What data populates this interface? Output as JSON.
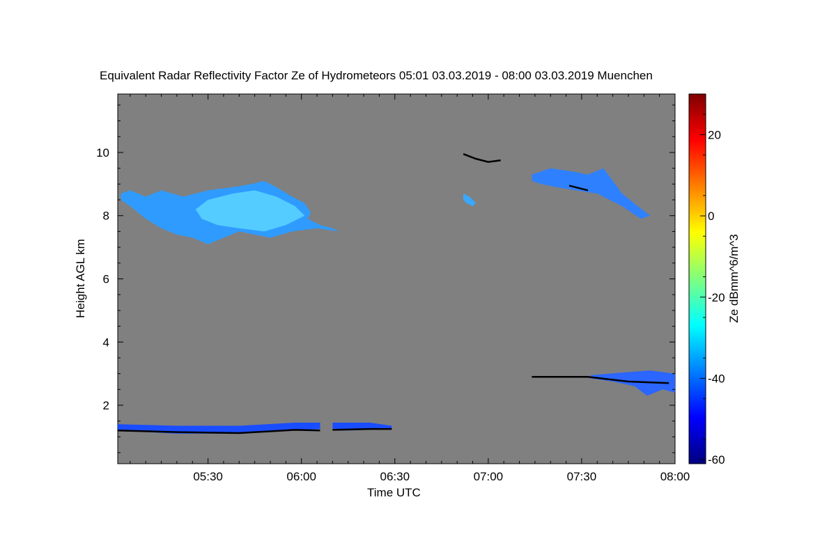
{
  "chart_data": {
    "type": "heatmap",
    "title": "Equivalent Radar Reflectivity Factor Ze of Hydrometeors   05:01 03.03.2019 - 08:00 03.03.2019 Muenchen",
    "xlabel": "Time UTC",
    "ylabel": "Height AGL km",
    "x_ticks": [
      "05:30",
      "06:00",
      "06:30",
      "07:00",
      "07:30",
      "08:00"
    ],
    "x_tick_minutes": [
      330,
      360,
      390,
      420,
      450,
      480
    ],
    "xlim_minutes": [
      301,
      480
    ],
    "y_ticks": [
      2,
      4,
      6,
      8,
      10
    ],
    "ylim": [
      0.15,
      11.85
    ],
    "background_color": "#808080",
    "colorbar": {
      "label": "Ze dBmm^6/m^3",
      "ticks": [
        20,
        0,
        -20,
        -40,
        -60
      ],
      "range": [
        -61,
        30
      ],
      "colors": [
        "#00007f",
        "#0000ff",
        "#007fff",
        "#00ffff",
        "#7fff7f",
        "#ffff00",
        "#ff7f00",
        "#ff0000",
        "#7f0000"
      ]
    },
    "features": [
      {
        "name": "upper-cloud-layer-left",
        "color": "#2f9bff",
        "outline": [
          [
            302,
            8.7
          ],
          [
            305,
            8.8
          ],
          [
            310,
            8.6
          ],
          [
            315,
            8.8
          ],
          [
            322,
            8.6
          ],
          [
            330,
            8.8
          ],
          [
            338,
            8.9
          ],
          [
            344,
            9.0
          ],
          [
            348,
            9.1
          ],
          [
            352,
            8.9
          ],
          [
            357,
            8.6
          ],
          [
            361,
            8.4
          ],
          [
            363,
            8.1
          ],
          [
            362,
            7.9
          ],
          [
            366,
            7.7
          ],
          [
            370,
            7.6
          ],
          [
            372,
            7.5
          ],
          [
            365,
            7.6
          ],
          [
            357,
            7.5
          ],
          [
            350,
            7.3
          ],
          [
            345,
            7.4
          ],
          [
            340,
            7.5
          ],
          [
            335,
            7.3
          ],
          [
            330,
            7.1
          ],
          [
            325,
            7.3
          ],
          [
            320,
            7.4
          ],
          [
            315,
            7.6
          ],
          [
            310,
            7.9
          ],
          [
            305,
            8.3
          ],
          [
            302,
            8.5
          ]
        ]
      },
      {
        "name": "upper-cloud-core-left",
        "color": "#54ccff",
        "outline": [
          [
            330,
            8.5
          ],
          [
            338,
            8.7
          ],
          [
            345,
            8.8
          ],
          [
            352,
            8.6
          ],
          [
            358,
            8.3
          ],
          [
            361,
            8.0
          ],
          [
            355,
            7.7
          ],
          [
            348,
            7.5
          ],
          [
            340,
            7.6
          ],
          [
            333,
            7.7
          ],
          [
            328,
            7.9
          ],
          [
            326,
            8.2
          ]
        ]
      },
      {
        "name": "upper-cloud-layer-right",
        "color": "#2f80ff",
        "outline": [
          [
            434,
            9.3
          ],
          [
            440,
            9.5
          ],
          [
            447,
            9.4
          ],
          [
            452,
            9.3
          ],
          [
            457,
            9.5
          ],
          [
            460,
            9.1
          ],
          [
            463,
            8.7
          ],
          [
            468,
            8.3
          ],
          [
            472,
            8.0
          ],
          [
            469,
            7.9
          ],
          [
            463,
            8.3
          ],
          [
            455,
            8.7
          ],
          [
            448,
            8.8
          ],
          [
            442,
            8.9
          ],
          [
            437,
            9.0
          ],
          [
            434,
            9.1
          ]
        ]
      },
      {
        "name": "upper-cloud-fragment",
        "color": "#3aa8ff",
        "outline": [
          [
            412,
            8.7
          ],
          [
            414,
            8.6
          ],
          [
            416,
            8.4
          ],
          [
            415,
            8.3
          ],
          [
            413,
            8.4
          ],
          [
            412,
            8.5
          ]
        ]
      },
      {
        "name": "low-cloud-layer-left",
        "color": "#1a4dff",
        "outline": [
          [
            301,
            1.4
          ],
          [
            320,
            1.35
          ],
          [
            340,
            1.35
          ],
          [
            358,
            1.45
          ],
          [
            366,
            1.45
          ],
          [
            366,
            1.25
          ],
          [
            340,
            1.1
          ],
          [
            320,
            1.1
          ],
          [
            301,
            1.2
          ]
        ]
      },
      {
        "name": "low-cloud-layer-mid",
        "color": "#1a4dff",
        "outline": [
          [
            370,
            1.45
          ],
          [
            382,
            1.45
          ],
          [
            389,
            1.35
          ],
          [
            389,
            1.25
          ],
          [
            375,
            1.2
          ],
          [
            370,
            1.2
          ]
        ]
      },
      {
        "name": "low-cloud-layer-right",
        "color": "#2a66ff",
        "outline": [
          [
            453,
            2.95
          ],
          [
            465,
            3.05
          ],
          [
            472,
            3.1
          ],
          [
            480,
            3.0
          ],
          [
            480,
            2.4
          ],
          [
            476,
            2.5
          ],
          [
            471,
            2.3
          ],
          [
            467,
            2.6
          ],
          [
            460,
            2.75
          ],
          [
            453,
            2.85
          ]
        ]
      }
    ],
    "black_traces": [
      {
        "name": "cloud-base-trace-low-left",
        "points": [
          [
            301,
            1.2
          ],
          [
            320,
            1.15
          ],
          [
            340,
            1.12
          ],
          [
            358,
            1.22
          ],
          [
            366,
            1.2
          ]
        ]
      },
      {
        "name": "cloud-base-trace-low-mid",
        "points": [
          [
            370,
            1.22
          ],
          [
            382,
            1.25
          ],
          [
            389,
            1.25
          ]
        ]
      },
      {
        "name": "cloud-top-trace-upper",
        "points": [
          [
            412,
            9.95
          ],
          [
            416,
            9.8
          ],
          [
            420,
            9.7
          ],
          [
            424,
            9.75
          ]
        ]
      },
      {
        "name": "cloud-trace-upper-right",
        "points": [
          [
            446,
            8.95
          ],
          [
            452,
            8.8
          ]
        ]
      },
      {
        "name": "cloud-base-trace-low-right",
        "points": [
          [
            434,
            2.9
          ],
          [
            440,
            2.9
          ],
          [
            452,
            2.9
          ],
          [
            465,
            2.75
          ],
          [
            478,
            2.7
          ]
        ]
      }
    ]
  }
}
